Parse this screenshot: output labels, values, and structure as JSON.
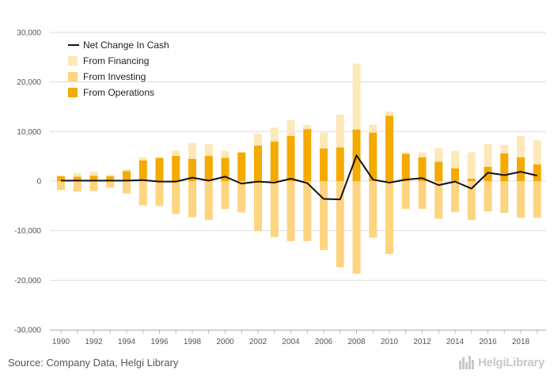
{
  "chart_data": {
    "type": "bar",
    "stacked": true,
    "x": [
      1990,
      1991,
      1992,
      1993,
      1994,
      1995,
      1996,
      1997,
      1998,
      1999,
      2000,
      2001,
      2002,
      2003,
      2004,
      2005,
      2006,
      2007,
      2008,
      2009,
      2010,
      2011,
      2012,
      2013,
      2014,
      2015,
      2016,
      2017,
      2018,
      2019
    ],
    "x_tick_labels": [
      "1990",
      "1992",
      "1994",
      "1996",
      "1998",
      "2000",
      "2002",
      "2004",
      "2006",
      "2008",
      "2010",
      "2012",
      "2014",
      "2016",
      "2018"
    ],
    "x_tick_years": [
      1990,
      1992,
      1994,
      1996,
      1998,
      2000,
      2002,
      2004,
      2006,
      2008,
      2010,
      2012,
      2014,
      2016,
      2018
    ],
    "y_tick_labels": [
      "30,000",
      "20,000",
      "10,000",
      "0",
      "-10,000",
      "-20,000",
      "-30,000"
    ],
    "y_tick_values": [
      30000,
      20000,
      10000,
      0,
      -10000,
      -20000,
      -30000
    ],
    "ylim": [
      -30000,
      30000
    ],
    "grid": true,
    "legend_position": "top-left",
    "series": [
      {
        "name": "From Operations",
        "type": "bar",
        "color": "#f5aa00",
        "values": [
          1000,
          900,
          1100,
          1000,
          2000,
          4200,
          4700,
          5100,
          4500,
          5100,
          4700,
          5800,
          7200,
          8000,
          9100,
          10500,
          6600,
          6800,
          10400,
          9800,
          13200,
          5500,
          4800,
          3900,
          2600,
          500,
          2900,
          5600,
          4800,
          3400
        ]
      },
      {
        "name": "From Financing",
        "type": "bar",
        "color": "#fde8b8",
        "values": [
          200,
          700,
          800,
          300,
          400,
          600,
          0,
          1100,
          3200,
          2400,
          1400,
          0,
          2400,
          2800,
          3200,
          800,
          3200,
          6600,
          13300,
          1600,
          800,
          300,
          1000,
          2800,
          3500,
          5300,
          4600,
          1700,
          4300,
          4800
        ]
      },
      {
        "name": "From Investing",
        "type": "bar",
        "color": "#fdd480",
        "values": [
          -1800,
          -2100,
          -2000,
          -1300,
          -2500,
          -4900,
          -5000,
          -6600,
          -7300,
          -7800,
          -5600,
          -6300,
          -10100,
          -11300,
          -12100,
          -12100,
          -13900,
          -17400,
          -18700,
          -11400,
          -14700,
          -5600,
          -5600,
          -7600,
          -6200,
          -7800,
          -6100,
          -6400,
          -7400,
          -7400
        ]
      },
      {
        "name": "Net Change In Cash",
        "type": "line",
        "color": "#111111",
        "values": [
          100,
          100,
          100,
          100,
          100,
          200,
          -100,
          -100,
          700,
          100,
          900,
          -500,
          -100,
          -300,
          500,
          -400,
          -3600,
          -3700,
          5200,
          300,
          -300,
          300,
          600,
          -800,
          -100,
          -1500,
          1700,
          1200,
          1900,
          1100
        ]
      }
    ],
    "legend_order": [
      "Net Change In Cash",
      "From Financing",
      "From Investing",
      "From Operations"
    ]
  },
  "colors": {
    "operations": "#f5aa00",
    "investing": "#fdd480",
    "financing": "#fde8b8",
    "net": "#111111",
    "grid": "#dddddd",
    "text": "#555555"
  },
  "footer": {
    "source": "Source: Company Data, Helgi Library",
    "logo_text": "HelgiLibrary",
    "logo_icon": "city-skyline-icon"
  }
}
